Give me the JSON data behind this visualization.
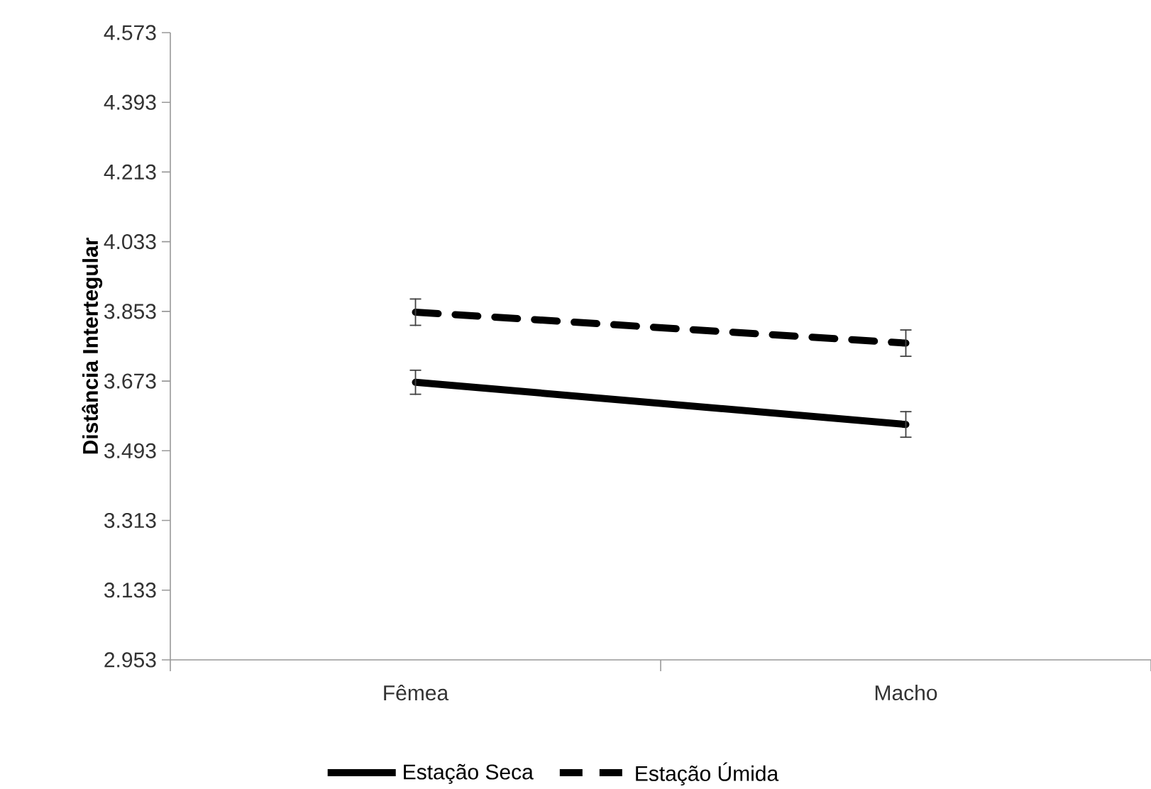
{
  "chart_data": {
    "type": "line",
    "ylabel": "Distância Intertegular",
    "categories": [
      "Fêmea",
      "Macho"
    ],
    "ylim": [
      2.953,
      4.573
    ],
    "yticks": [
      2.953,
      3.133,
      3.313,
      3.493,
      3.673,
      3.853,
      4.033,
      4.213,
      4.393,
      4.573
    ],
    "legend": "bottom",
    "series": [
      {
        "name": "Estação Seca",
        "color": "#000000",
        "line_style": "solid",
        "values": [
          3.67,
          3.561
        ],
        "errors": [
          0.031,
          0.033
        ]
      },
      {
        "name": "Estação Úmida",
        "color": "#000000",
        "line_style": "dashed",
        "values": [
          3.851,
          3.771
        ],
        "errors": [
          0.034,
          0.034
        ]
      }
    ]
  }
}
